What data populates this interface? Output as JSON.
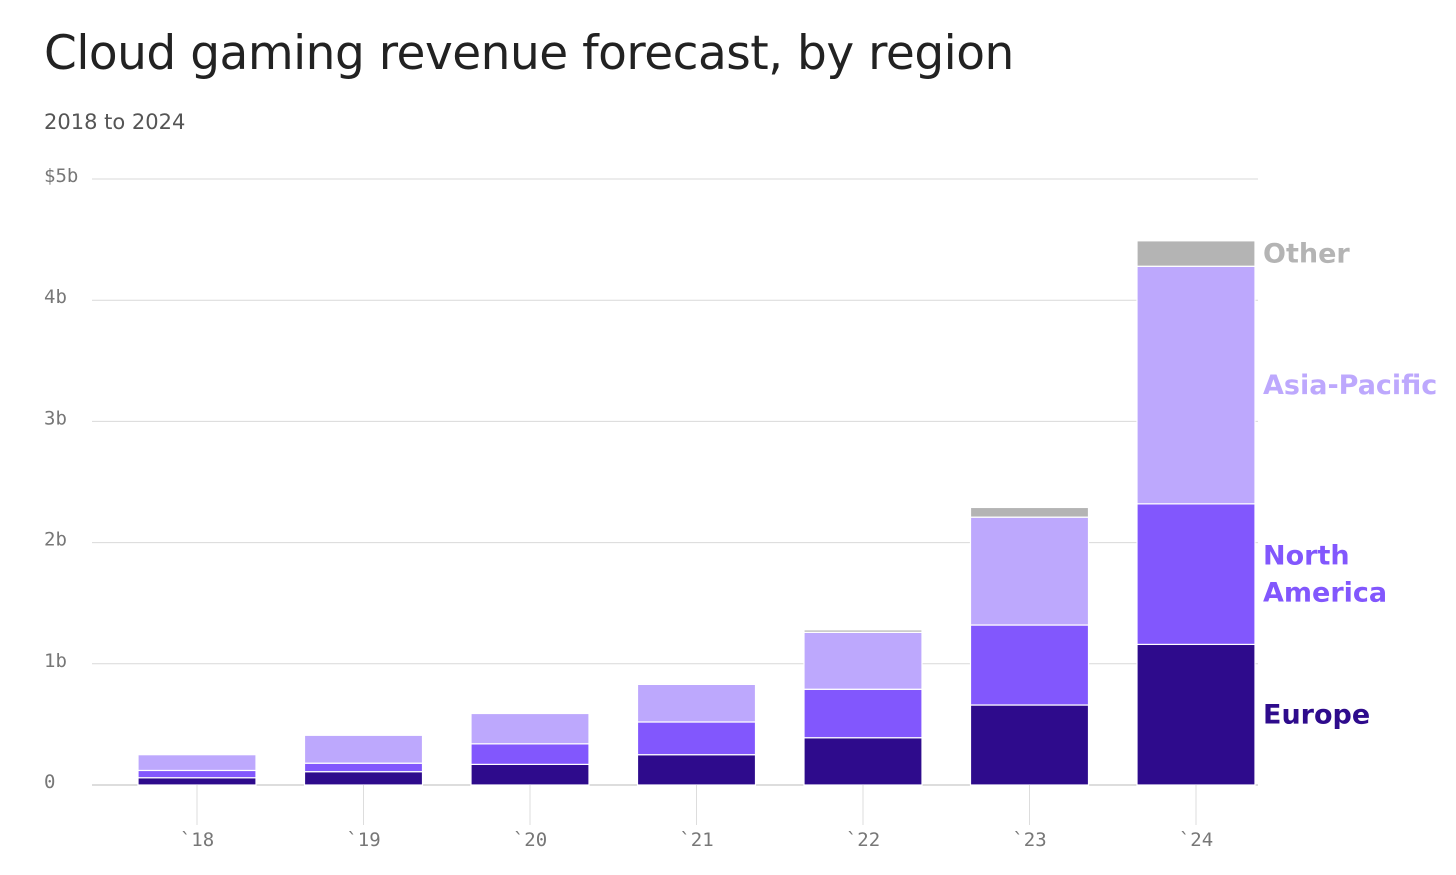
{
  "header": {
    "title": "Cloud gaming revenue forecast, by region",
    "subtitle": "2018 to 2024"
  },
  "chart_data": {
    "type": "bar",
    "stacked": true,
    "title": "Cloud gaming revenue forecast, by region",
    "subtitle": "2018 to 2024",
    "xlabel": "",
    "ylabel": "",
    "categories": [
      "`18",
      "`19",
      "`20",
      "`21",
      "`22",
      "`23",
      "`24"
    ],
    "y_tick_values": [
      0,
      1,
      2,
      3,
      4,
      5
    ],
    "y_tick_labels": [
      "0",
      "1b",
      "2b",
      "3b",
      "4b",
      "$5b"
    ],
    "ylim": [
      0,
      5
    ],
    "grid": true,
    "legend": "direct labels at right of last bar",
    "series": [
      {
        "name": "Europe",
        "label_lines": [
          "Europe"
        ],
        "color": "#2e0b8c",
        "values": [
          0.06,
          0.11,
          0.17,
          0.25,
          0.39,
          0.66,
          1.16
        ]
      },
      {
        "name": "North America",
        "label_lines": [
          "North",
          "America"
        ],
        "color": "#8257fd",
        "values": [
          0.06,
          0.07,
          0.17,
          0.27,
          0.4,
          0.66,
          1.16
        ]
      },
      {
        "name": "Asia-Pacific",
        "label_lines": [
          "Asia-Pacific"
        ],
        "color": "#bda8fd",
        "values": [
          0.13,
          0.23,
          0.25,
          0.31,
          0.47,
          0.89,
          1.96
        ]
      },
      {
        "name": "Other",
        "label_lines": [
          "Other"
        ],
        "color": "#b4b4b4",
        "values": [
          0.0,
          0.0,
          0.0,
          0.01,
          0.02,
          0.08,
          0.21
        ]
      }
    ]
  }
}
